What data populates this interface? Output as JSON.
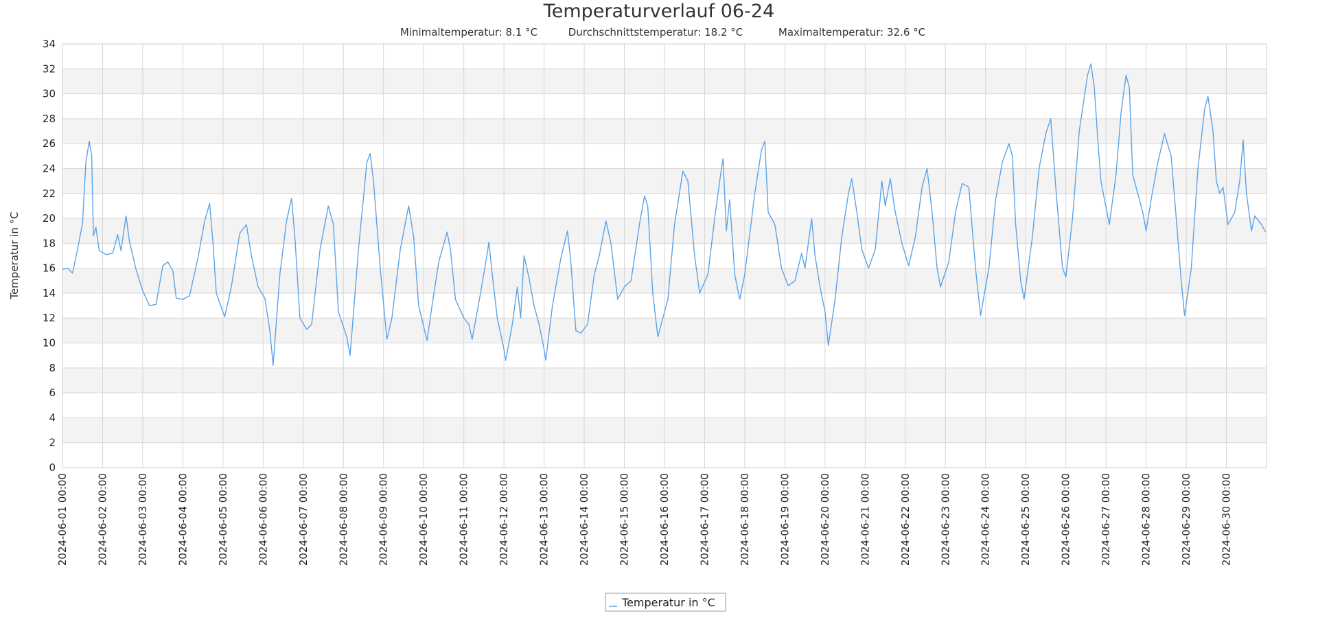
{
  "colors": {
    "series": "#5ba3e8",
    "band": "#f3f3f3",
    "grid": "#d6d6d6",
    "axis": "#cccccc"
  },
  "chart_data": {
    "type": "line",
    "title": "Temperaturverlauf 06-24",
    "subtitle_items": [
      "Minimaltemperatur: 8.1 °C",
      "Durchschnittstemperatur: 18.2 °C",
      "Maximaltemperatur: 32.6 °C"
    ],
    "ylabel": "Temperatur in °C",
    "xlabel": "",
    "ylim": [
      0,
      34
    ],
    "y_ticks": [
      0,
      2,
      4,
      6,
      8,
      10,
      12,
      14,
      16,
      18,
      20,
      22,
      24,
      26,
      28,
      30,
      32,
      34
    ],
    "x_range": [
      "2024-06-01 00:00",
      "2024-07-01 00:00"
    ],
    "x_tick_labels": [
      "2024-06-01 00:00",
      "2024-06-02 00:00",
      "2024-06-03 00:00",
      "2024-06-04 00:00",
      "2024-06-05 00:00",
      "2024-06-06 00:00",
      "2024-06-07 00:00",
      "2024-06-08 00:00",
      "2024-06-09 00:00",
      "2024-06-10 00:00",
      "2024-06-11 00:00",
      "2024-06-12 00:00",
      "2024-06-13 00:00",
      "2024-06-14 00:00",
      "2024-06-15 00:00",
      "2024-06-16 00:00",
      "2024-06-17 00:00",
      "2024-06-18 00:00",
      "2024-06-19 00:00",
      "2024-06-20 00:00",
      "2024-06-21 00:00",
      "2024-06-22 00:00",
      "2024-06-23 00:00",
      "2024-06-24 00:00",
      "2024-06-25 00:00",
      "2024-06-26 00:00",
      "2024-06-27 00:00",
      "2024-06-28 00:00",
      "2024-06-29 00:00",
      "2024-06-30 00:00"
    ],
    "grid": true,
    "legend_position": "bottom-center",
    "series": [
      {
        "name": "Temperatur in °C",
        "points": [
          [
            "2024-06-01 00:00",
            15.9
          ],
          [
            "2024-06-01 03:00",
            16.0
          ],
          [
            "2024-06-01 06:00",
            15.6
          ],
          [
            "2024-06-01 09:00",
            17.5
          ],
          [
            "2024-06-01 12:00",
            19.6
          ],
          [
            "2024-06-01 14:00",
            24.5
          ],
          [
            "2024-06-01 16:00",
            26.2
          ],
          [
            "2024-06-01 17:30",
            25.0
          ],
          [
            "2024-06-01 18:30",
            18.6
          ],
          [
            "2024-06-01 20:00",
            19.3
          ],
          [
            "2024-06-01 22:00",
            17.4
          ],
          [
            "2024-06-02 02:00",
            17.1
          ],
          [
            "2024-06-02 06:00",
            17.2
          ],
          [
            "2024-06-02 09:00",
            18.7
          ],
          [
            "2024-06-02 11:00",
            17.4
          ],
          [
            "2024-06-02 14:00",
            20.2
          ],
          [
            "2024-06-02 16:00",
            18.2
          ],
          [
            "2024-06-02 20:00",
            15.9
          ],
          [
            "2024-06-03 00:00",
            14.2
          ],
          [
            "2024-06-03 04:00",
            13.0
          ],
          [
            "2024-06-03 08:00",
            13.1
          ],
          [
            "2024-06-03 12:00",
            16.2
          ],
          [
            "2024-06-03 15:00",
            16.5
          ],
          [
            "2024-06-03 18:00",
            15.8
          ],
          [
            "2024-06-03 20:00",
            13.6
          ],
          [
            "2024-06-04 00:00",
            13.5
          ],
          [
            "2024-06-04 04:00",
            13.8
          ],
          [
            "2024-06-04 09:00",
            16.8
          ],
          [
            "2024-06-04 13:00",
            19.8
          ],
          [
            "2024-06-04 16:00",
            21.2
          ],
          [
            "2024-06-04 18:00",
            18.0
          ],
          [
            "2024-06-04 20:00",
            14.0
          ],
          [
            "2024-06-05 01:00",
            12.1
          ],
          [
            "2024-06-05 05:00",
            14.5
          ],
          [
            "2024-06-05 10:00",
            18.8
          ],
          [
            "2024-06-05 14:00",
            19.5
          ],
          [
            "2024-06-05 17:00",
            17.0
          ],
          [
            "2024-06-05 21:00",
            14.5
          ],
          [
            "2024-06-06 01:00",
            13.6
          ],
          [
            "2024-06-06 04:00",
            11.0
          ],
          [
            "2024-06-06 06:00",
            8.2
          ],
          [
            "2024-06-06 10:00",
            15.5
          ],
          [
            "2024-06-06 14:00",
            19.8
          ],
          [
            "2024-06-06 17:00",
            21.6
          ],
          [
            "2024-06-06 19:00",
            18.5
          ],
          [
            "2024-06-06 22:00",
            12.0
          ],
          [
            "2024-06-07 02:00",
            11.1
          ],
          [
            "2024-06-07 05:00",
            11.5
          ],
          [
            "2024-06-07 10:00",
            17.5
          ],
          [
            "2024-06-07 15:00",
            21.0
          ],
          [
            "2024-06-07 18:00",
            19.5
          ],
          [
            "2024-06-07 21:00",
            12.5
          ],
          [
            "2024-06-08 02:00",
            10.5
          ],
          [
            "2024-06-08 04:00",
            9.0
          ],
          [
            "2024-06-08 09:00",
            17.5
          ],
          [
            "2024-06-08 14:00",
            24.5
          ],
          [
            "2024-06-08 16:00",
            25.2
          ],
          [
            "2024-06-08 18:00",
            23.0
          ],
          [
            "2024-06-08 22:00",
            16.0
          ],
          [
            "2024-06-09 02:00",
            10.3
          ],
          [
            "2024-06-09 05:00",
            12.0
          ],
          [
            "2024-06-09 10:00",
            17.5
          ],
          [
            "2024-06-09 15:00",
            21.0
          ],
          [
            "2024-06-09 18:00",
            18.5
          ],
          [
            "2024-06-09 21:00",
            13.0
          ],
          [
            "2024-06-10 02:00",
            10.2
          ],
          [
            "2024-06-10 05:00",
            13.0
          ],
          [
            "2024-06-10 09:00",
            16.5
          ],
          [
            "2024-06-10 14:00",
            18.9
          ],
          [
            "2024-06-10 16:00",
            17.5
          ],
          [
            "2024-06-10 19:00",
            13.5
          ],
          [
            "2024-06-11 00:00",
            12.0
          ],
          [
            "2024-06-11 03:00",
            11.5
          ],
          [
            "2024-06-11 05:00",
            10.3
          ],
          [
            "2024-06-11 10:00",
            14.0
          ],
          [
            "2024-06-11 14:00",
            17.2
          ],
          [
            "2024-06-11 15:00",
            18.1
          ],
          [
            "2024-06-11 17:00",
            15.5
          ],
          [
            "2024-06-11 20:00",
            12.0
          ],
          [
            "2024-06-12 00:00",
            9.5
          ],
          [
            "2024-06-12 01:00",
            8.6
          ],
          [
            "2024-06-12 05:00",
            11.5
          ],
          [
            "2024-06-12 08:00",
            14.5
          ],
          [
            "2024-06-12 10:00",
            12.0
          ],
          [
            "2024-06-12 12:00",
            17.0
          ],
          [
            "2024-06-12 15:00",
            15.2
          ],
          [
            "2024-06-12 18:00",
            13.0
          ],
          [
            "2024-06-12 21:00",
            11.5
          ],
          [
            "2024-06-13 00:00",
            9.5
          ],
          [
            "2024-06-13 01:00",
            8.6
          ],
          [
            "2024-06-13 05:00",
            13.0
          ],
          [
            "2024-06-13 10:00",
            16.8
          ],
          [
            "2024-06-13 14:00",
            19.0
          ],
          [
            "2024-06-13 16:00",
            16.5
          ],
          [
            "2024-06-13 19:00",
            11.0
          ],
          [
            "2024-06-13 22:00",
            10.8
          ],
          [
            "2024-06-14 02:00",
            11.5
          ],
          [
            "2024-06-14 06:00",
            15.5
          ],
          [
            "2024-06-14 09:00",
            17.0
          ],
          [
            "2024-06-14 13:00",
            19.8
          ],
          [
            "2024-06-14 16:00",
            18.0
          ],
          [
            "2024-06-14 20:00",
            13.5
          ],
          [
            "2024-06-15 00:00",
            14.5
          ],
          [
            "2024-06-15 04:00",
            15.0
          ],
          [
            "2024-06-15 09:00",
            19.5
          ],
          [
            "2024-06-15 12:00",
            21.8
          ],
          [
            "2024-06-15 14:00",
            21.0
          ],
          [
            "2024-06-15 17:00",
            14.0
          ],
          [
            "2024-06-15 20:00",
            10.5
          ],
          [
            "2024-06-16 02:00",
            13.5
          ],
          [
            "2024-06-16 06:00",
            19.5
          ],
          [
            "2024-06-16 11:00",
            23.8
          ],
          [
            "2024-06-16 14:00",
            23.0
          ],
          [
            "2024-06-16 18:00",
            17.0
          ],
          [
            "2024-06-16 21:00",
            14.0
          ],
          [
            "2024-06-17 02:00",
            15.5
          ],
          [
            "2024-06-17 06:00",
            20.0
          ],
          [
            "2024-06-17 09:00",
            23.0
          ],
          [
            "2024-06-17 11:00",
            24.8
          ],
          [
            "2024-06-17 13:00",
            19.0
          ],
          [
            "2024-06-17 15:00",
            21.5
          ],
          [
            "2024-06-17 18:00",
            15.5
          ],
          [
            "2024-06-17 21:00",
            13.5
          ],
          [
            "2024-06-18 00:00",
            15.5
          ],
          [
            "2024-06-18 06:00",
            22.0
          ],
          [
            "2024-06-18 10:00",
            25.5
          ],
          [
            "2024-06-18 12:00",
            26.2
          ],
          [
            "2024-06-18 14:00",
            20.5
          ],
          [
            "2024-06-18 18:00",
            19.5
          ],
          [
            "2024-06-18 22:00",
            16.0
          ],
          [
            "2024-06-19 02:00",
            14.6
          ],
          [
            "2024-06-19 06:00",
            15.0
          ],
          [
            "2024-06-19 10:00",
            17.2
          ],
          [
            "2024-06-19 12:00",
            16.0
          ],
          [
            "2024-06-19 16:00",
            20.0
          ],
          [
            "2024-06-19 18:00",
            17.0
          ],
          [
            "2024-06-19 21:00",
            14.5
          ],
          [
            "2024-06-20 00:00",
            12.5
          ],
          [
            "2024-06-20 02:00",
            9.8
          ],
          [
            "2024-06-20 06:00",
            13.5
          ],
          [
            "2024-06-20 10:00",
            18.5
          ],
          [
            "2024-06-20 14:00",
            22.0
          ],
          [
            "2024-06-20 16:00",
            23.2
          ],
          [
            "2024-06-20 19:00",
            20.5
          ],
          [
            "2024-06-20 22:00",
            17.5
          ],
          [
            "2024-06-21 02:00",
            16.0
          ],
          [
            "2024-06-21 06:00",
            17.5
          ],
          [
            "2024-06-21 10:00",
            23.0
          ],
          [
            "2024-06-21 12:00",
            21.0
          ],
          [
            "2024-06-21 15:00",
            23.2
          ],
          [
            "2024-06-21 18:00",
            20.5
          ],
          [
            "2024-06-21 22:00",
            18.0
          ],
          [
            "2024-06-22 02:00",
            16.2
          ],
          [
            "2024-06-22 06:00",
            18.5
          ],
          [
            "2024-06-22 10:00",
            22.5
          ],
          [
            "2024-06-22 13:00",
            24.0
          ],
          [
            "2024-06-22 16:00",
            20.5
          ],
          [
            "2024-06-22 19:00",
            16.0
          ],
          [
            "2024-06-22 21:00",
            14.5
          ],
          [
            "2024-06-23 02:00",
            16.5
          ],
          [
            "2024-06-23 06:00",
            20.5
          ],
          [
            "2024-06-23 10:00",
            22.8
          ],
          [
            "2024-06-23 14:00",
            22.5
          ],
          [
            "2024-06-23 18:00",
            16.0
          ],
          [
            "2024-06-23 21:00",
            12.2
          ],
          [
            "2024-06-24 02:00",
            16.0
          ],
          [
            "2024-06-24 06:00",
            21.5
          ],
          [
            "2024-06-24 10:00",
            24.5
          ],
          [
            "2024-06-24 14:00",
            26.0
          ],
          [
            "2024-06-24 16:00",
            25.0
          ],
          [
            "2024-06-24 18:00",
            19.5
          ],
          [
            "2024-06-24 21:00",
            15.0
          ],
          [
            "2024-06-24 23:00",
            13.5
          ],
          [
            "2024-06-25 04:00",
            18.5
          ],
          [
            "2024-06-25 08:00",
            24.0
          ],
          [
            "2024-06-25 12:00",
            26.8
          ],
          [
            "2024-06-25 15:00",
            28.0
          ],
          [
            "2024-06-25 18:00",
            22.5
          ],
          [
            "2024-06-25 22:00",
            16.0
          ],
          [
            "2024-06-26 00:00",
            15.3
          ],
          [
            "2024-06-26 04:00",
            20.0
          ],
          [
            "2024-06-26 08:00",
            27.0
          ],
          [
            "2024-06-26 13:00",
            31.5
          ],
          [
            "2024-06-26 15:00",
            32.4
          ],
          [
            "2024-06-26 17:00",
            30.5
          ],
          [
            "2024-06-26 19:00",
            26.5
          ],
          [
            "2024-06-26 21:00",
            23.0
          ],
          [
            "2024-06-27 02:00",
            19.5
          ],
          [
            "2024-06-27 06:00",
            23.5
          ],
          [
            "2024-06-27 09:00",
            28.5
          ],
          [
            "2024-06-27 12:00",
            31.5
          ],
          [
            "2024-06-27 14:00",
            30.5
          ],
          [
            "2024-06-27 16:00",
            23.5
          ],
          [
            "2024-06-27 19:00",
            22.0
          ],
          [
            "2024-06-27 22:00",
            20.5
          ],
          [
            "2024-06-28 00:00",
            19.0
          ],
          [
            "2024-06-28 03:00",
            21.5
          ],
          [
            "2024-06-28 07:00",
            24.5
          ],
          [
            "2024-06-28 11:00",
            26.8
          ],
          [
            "2024-06-28 15:00",
            25.0
          ],
          [
            "2024-06-28 18:00",
            20.0
          ],
          [
            "2024-06-28 21:00",
            15.0
          ],
          [
            "2024-06-28 23:00",
            12.2
          ],
          [
            "2024-06-29 03:00",
            16.0
          ],
          [
            "2024-06-29 07:00",
            24.0
          ],
          [
            "2024-06-29 11:00",
            28.8
          ],
          [
            "2024-06-29 13:00",
            29.8
          ],
          [
            "2024-06-29 16:00",
            27.0
          ],
          [
            "2024-06-29 18:00",
            23.0
          ],
          [
            "2024-06-29 20:00",
            22.0
          ],
          [
            "2024-06-29 22:00",
            22.5
          ],
          [
            "2024-06-30 01:00",
            19.5
          ],
          [
            "2024-06-30 05:00",
            20.5
          ],
          [
            "2024-06-30 08:00",
            23.0
          ],
          [
            "2024-06-30 10:00",
            26.3
          ],
          [
            "2024-06-30 12:00",
            22.0
          ],
          [
            "2024-06-30 15:00",
            19.0
          ],
          [
            "2024-06-30 17:00",
            20.2
          ],
          [
            "2024-06-30 21:00",
            19.5
          ],
          [
            "2024-06-30 23:30",
            18.9
          ]
        ]
      }
    ]
  }
}
